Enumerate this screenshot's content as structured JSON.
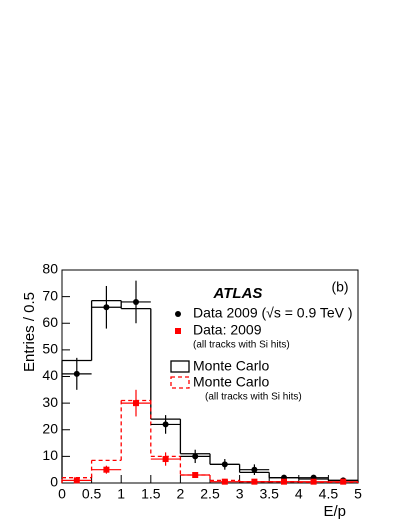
{
  "chart_data": {
    "type": "histogram",
    "annotations": [
      "ATLAS",
      "(b)"
    ],
    "xlabel": "E/p",
    "ylabel": "Entries / 0.5",
    "bins": [
      0,
      0.5,
      1,
      1.5,
      2,
      2.5,
      3,
      3.5,
      4,
      4.5,
      5
    ],
    "xlim": [
      0,
      5
    ],
    "ylim": [
      0,
      80
    ],
    "xticks": [
      0,
      0.5,
      1,
      1.5,
      2,
      2.5,
      3,
      3.5,
      4,
      4.5,
      5
    ],
    "yticks": [
      0,
      10,
      20,
      30,
      40,
      50,
      60,
      70,
      80
    ],
    "series": [
      {
        "name": "Data 2009 (√s = 0.9 TeV )",
        "style": "points",
        "marker": "circle",
        "color": "#000000",
        "values": [
          41,
          66,
          68,
          22,
          10,
          7,
          5,
          2,
          2,
          1
        ],
        "errors": [
          6,
          8,
          8,
          3.5,
          2.5,
          2,
          2,
          1,
          1,
          1
        ]
      },
      {
        "name": "Data: 2009",
        "note": "(all tracks with Si hits)",
        "style": "points",
        "marker": "square",
        "color": "#ff0000",
        "values": [
          1,
          5,
          30,
          9,
          3,
          0.5,
          0.5,
          0.5,
          0.5,
          0.5
        ],
        "errors": [
          0.5,
          1.5,
          5,
          2.5,
          1,
          0.5,
          0.5,
          0.5,
          0.5,
          0.5
        ]
      },
      {
        "name": "Monte Carlo",
        "style": "step",
        "dashed": false,
        "color": "#000000",
        "values": [
          46,
          68.5,
          65.5,
          24,
          11,
          7,
          4,
          2,
          1.5,
          1
        ]
      },
      {
        "name": "Monte Carlo",
        "note": "(all tracks with Si hits)",
        "style": "step",
        "dashed": true,
        "color": "#ff0000",
        "values": [
          2,
          8.5,
          31,
          10,
          3,
          1,
          0.5,
          0.5,
          0.3,
          0.3
        ]
      }
    ]
  }
}
